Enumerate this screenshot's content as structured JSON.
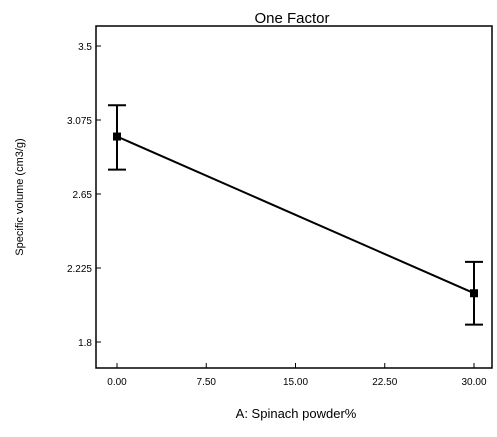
{
  "chart_data": {
    "type": "line",
    "title": "One Factor",
    "xlabel": "A: Spinach powder%",
    "ylabel": "Specific volume (cm3/g)",
    "xlim": [
      0,
      30
    ],
    "ylim": [
      1.8,
      3.5
    ],
    "x_ticks": [
      "0.00",
      "7.50",
      "15.00",
      "22.50",
      "30.00"
    ],
    "y_ticks": [
      "3.5",
      "3.075",
      "2.65",
      "2.225",
      "1.8"
    ],
    "grid": false,
    "series": [
      {
        "x": [
          0,
          30
        ],
        "values": [
          2.98,
          2.08
        ],
        "error_upper": [
          3.16,
          2.26
        ],
        "error_lower": [
          2.79,
          1.9
        ]
      }
    ]
  }
}
